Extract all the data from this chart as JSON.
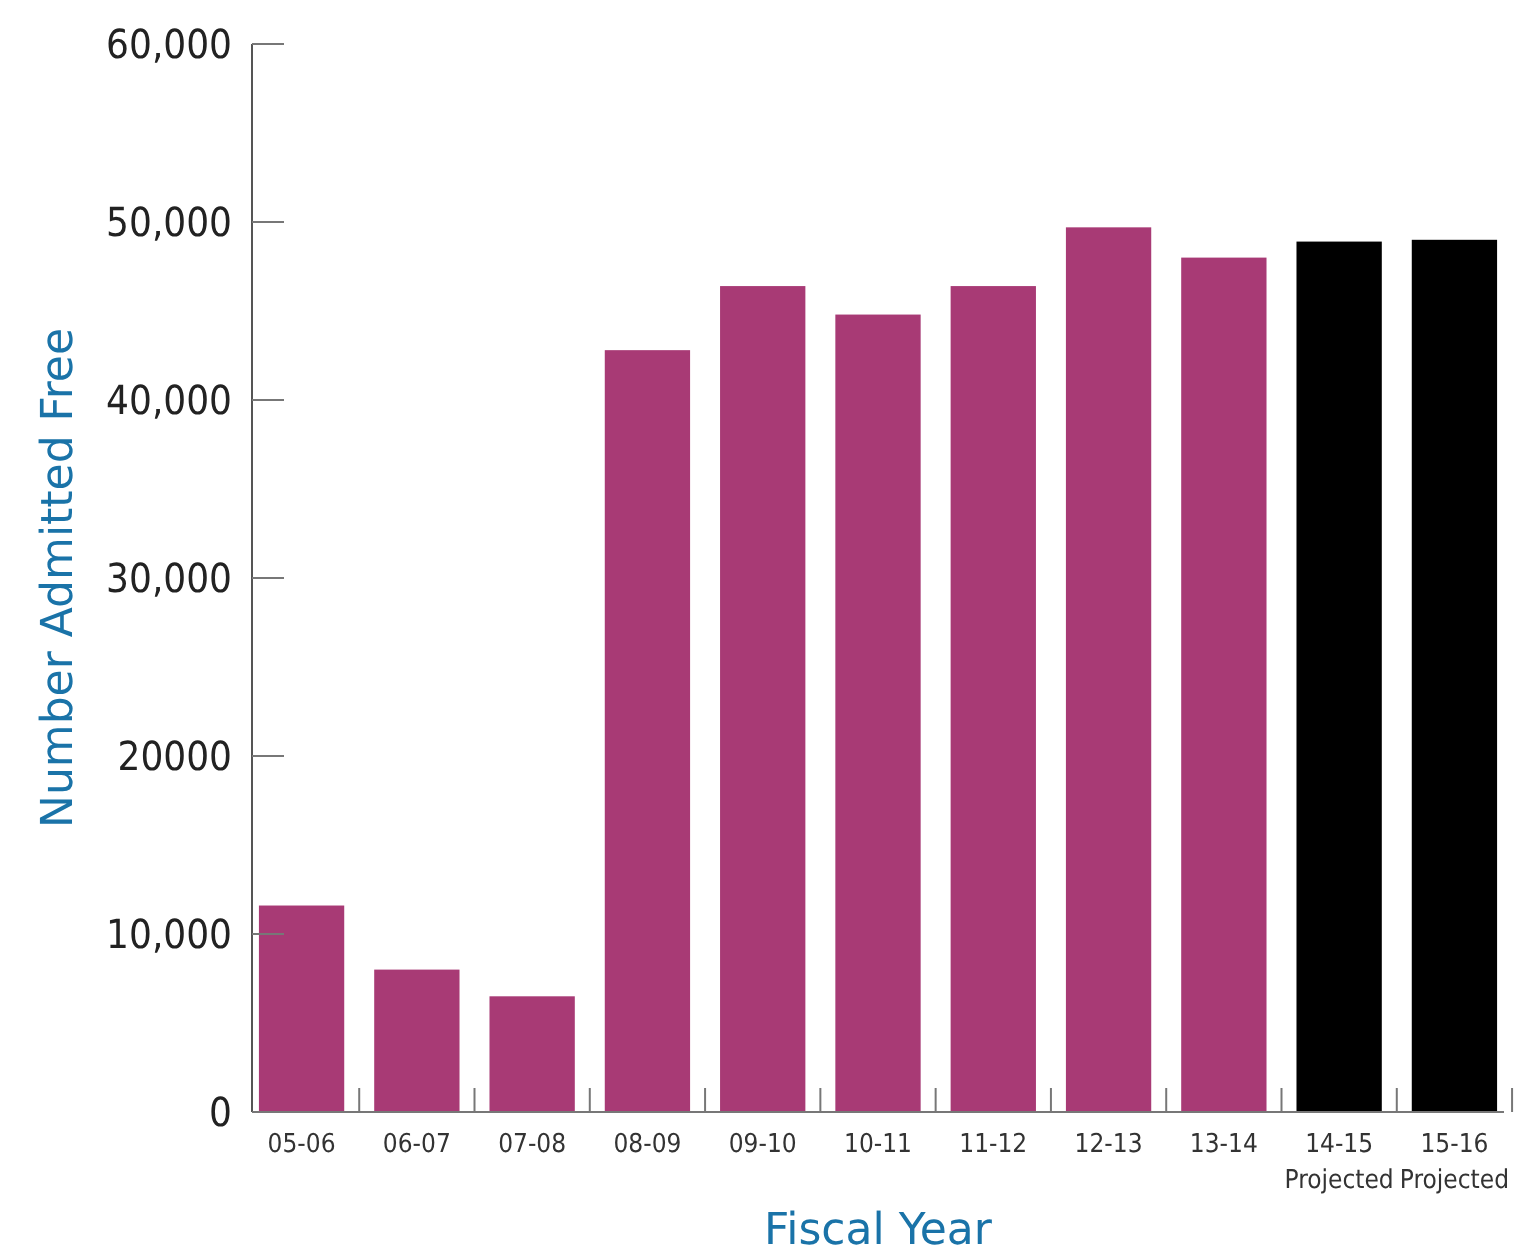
{
  "chart_data": {
    "type": "bar",
    "xlabel": "Fiscal Year",
    "ylabel": "Number Admitted Free",
    "categories": [
      "05-06",
      "06-07",
      "07-08",
      "08-09",
      "09-10",
      "10-11",
      "11-12",
      "12-13",
      "13-14",
      "14-15\nProjected",
      "15-16\nProjected"
    ],
    "values": [
      11600,
      8000,
      6500,
      42800,
      46400,
      44800,
      46400,
      49700,
      48000,
      48900,
      49000
    ],
    "colors": [
      "#a83a75",
      "#a83a75",
      "#a83a75",
      "#a83a75",
      "#a83a75",
      "#a83a75",
      "#a83a75",
      "#a83a75",
      "#a83a75",
      "#000000",
      "#000000"
    ],
    "ylim": [
      0,
      60000
    ],
    "yticks": [
      0,
      {
        "value": 10000,
        "label": "10,000"
      },
      20000,
      {
        "value": 30000,
        "label": "30,000"
      },
      {
        "value": 40000,
        "label": "40,000"
      },
      {
        "value": 50000,
        "label": "50,000"
      },
      {
        "value": 60000,
        "label": "60,000"
      }
    ],
    "grid": false
  }
}
